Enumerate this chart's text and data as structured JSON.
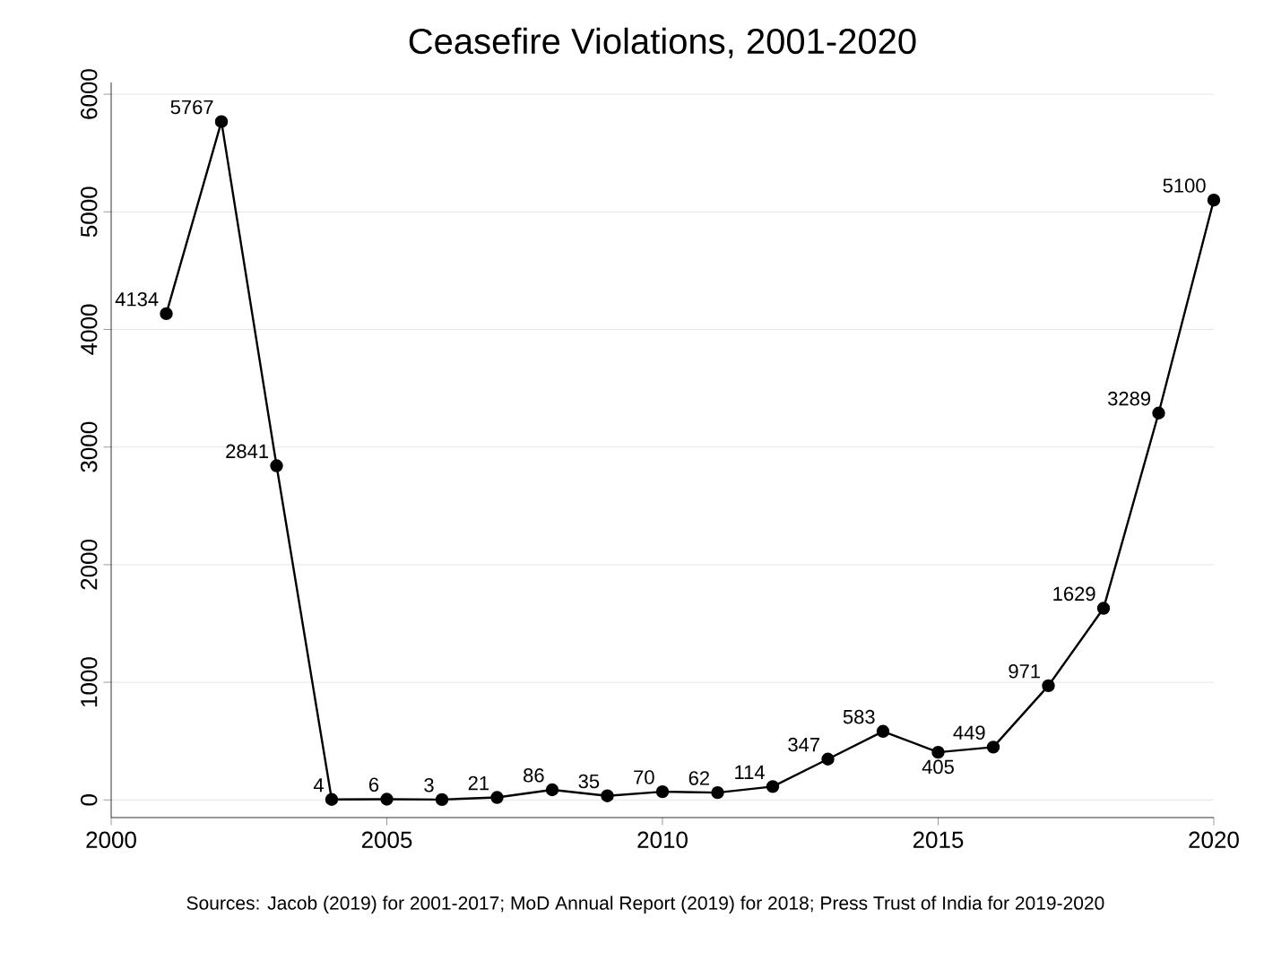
{
  "chart_data": {
    "type": "line",
    "title": "Ceasefire Violations, 2001-2020",
    "x": [
      2001,
      2002,
      2003,
      2004,
      2005,
      2006,
      2007,
      2008,
      2009,
      2010,
      2011,
      2012,
      2013,
      2014,
      2015,
      2016,
      2017,
      2018,
      2019,
      2020
    ],
    "values": [
      4134,
      5767,
      2841,
      4,
      6,
      3,
      21,
      86,
      35,
      70,
      62,
      114,
      347,
      583,
      405,
      449,
      971,
      1629,
      3289,
      5100
    ],
    "color": "#000000",
    "marker": "circle",
    "data_labels": true,
    "grid": "y",
    "xlim": [
      2000,
      2020
    ],
    "xticks": [
      2000,
      2005,
      2010,
      2015,
      2020
    ],
    "ylim": [
      -150,
      6100
    ],
    "yticks": [
      0,
      1000,
      2000,
      3000,
      4000,
      5000,
      6000
    ],
    "annotations": [
      "Sources: Jacob (2019) for 2001-2017; MoD Annual Report (2019) for 2018; Press Trust of India for 2019-2020"
    ]
  }
}
